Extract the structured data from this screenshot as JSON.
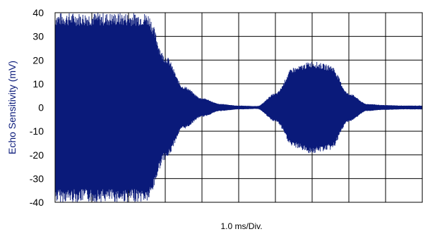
{
  "chart_data": {
    "type": "line",
    "title": "",
    "xlabel": "1.0 ms/Div.",
    "ylabel": "Echo Sensitivity (mV)",
    "ylim": [
      -40,
      40
    ],
    "yticks": [
      "40",
      "30",
      "20",
      "10",
      "0",
      "-10",
      "-20",
      "-30",
      "-40"
    ],
    "x_divisions": 10,
    "x_unit_per_division_ms": 1.0,
    "grid": true,
    "legend": "none",
    "series_color": "#0a1a7a",
    "series": [
      {
        "envelope_ms": [
          0,
          0.5,
          1.0,
          1.5,
          2.0,
          2.5,
          3.0,
          3.5,
          4.0,
          4.5,
          5.0,
          5.5,
          6.0,
          6.5,
          7.0,
          7.5,
          8.0,
          8.5,
          9.0,
          9.5,
          10.0
        ],
        "envelope_mv": [
          40,
          40,
          40,
          40,
          40,
          40,
          22,
          9,
          4,
          1.5,
          0.8,
          0.6,
          6,
          17,
          19.5,
          18,
          6,
          1.5,
          1.0,
          0.8,
          0.8
        ]
      }
    ]
  }
}
